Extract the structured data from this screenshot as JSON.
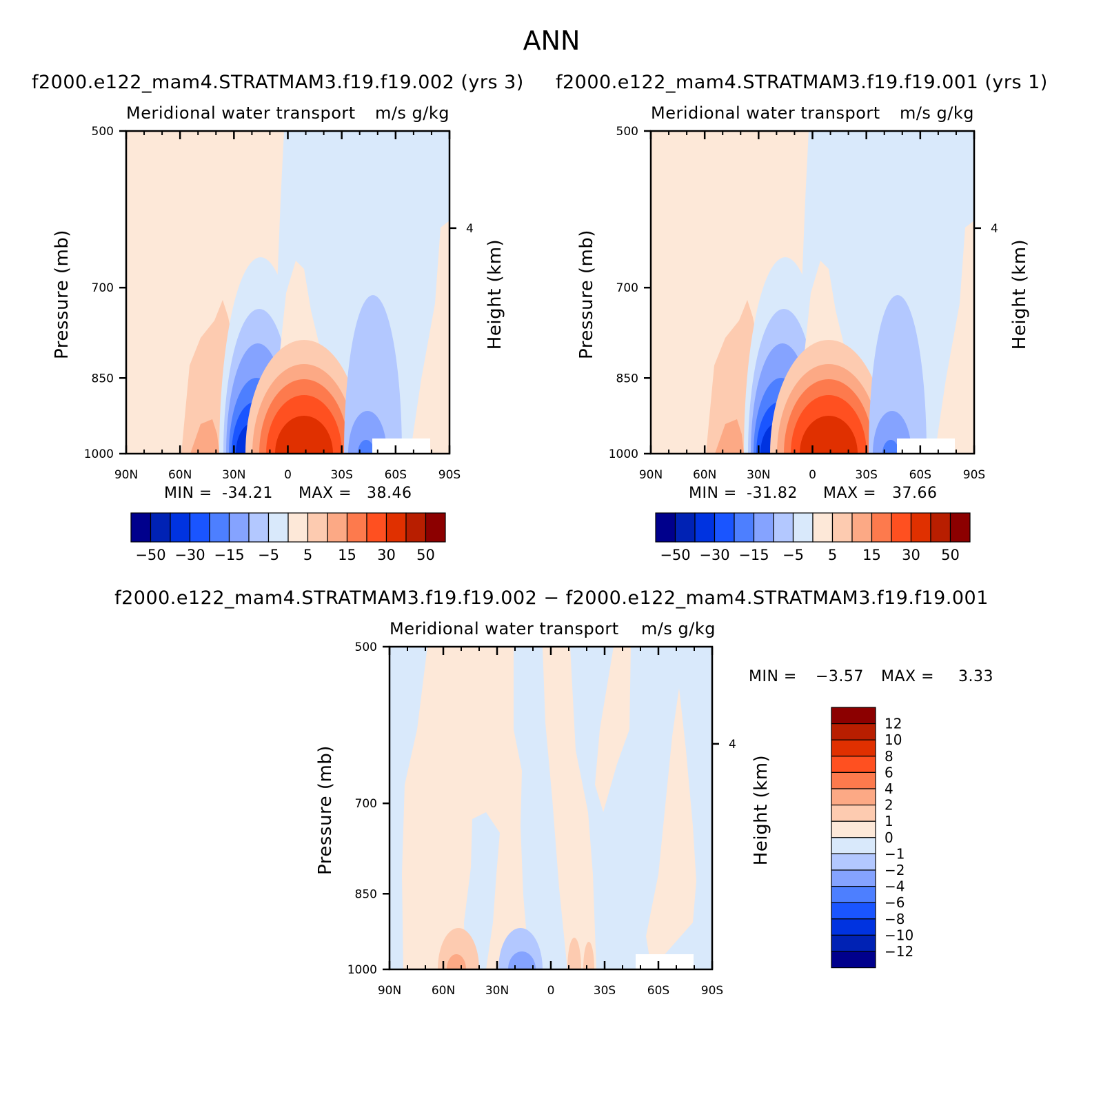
{
  "figure": {
    "title": "ANN"
  },
  "colors": {
    "diverging_palette": [
      "#00008c",
      "#0022b4",
      "#0033e0",
      "#1a55ff",
      "#4d7fff",
      "#85a3ff",
      "#b3c8ff",
      "#d9e9fb",
      "#fde8d8",
      "#fdcbb0",
      "#fca985",
      "#fd7a4d",
      "#ff5020",
      "#e03000",
      "#b81e00",
      "#8c0000"
    ]
  },
  "chart_data": [
    {
      "type": "contour",
      "case_title": "f2000.e122_mam4.STRATMAM3.f19.f19.002 (yrs 3)",
      "left_subtitle": "Meridional water transport",
      "right_subtitle": "m/s g/kg",
      "ylabel": "Pressure (mb)",
      "right_ylabel": "Height (km)",
      "xticks": [
        "90N",
        "60N",
        "30N",
        "0",
        "30S",
        "60S",
        "90S"
      ],
      "yticks": [
        "500",
        "700",
        "850",
        "1000"
      ],
      "right_ticks": [
        "4"
      ],
      "min_label": "MIN =",
      "min_value": "-34.21",
      "max_label": "MAX =",
      "max_value": "38.46",
      "min": -34.21,
      "max": 38.46,
      "colorbar_labels": [
        "−50",
        "−30",
        "−15",
        "−5",
        "5",
        "15",
        "30",
        "50"
      ],
      "colorbar_orientation": "horizontal"
    },
    {
      "type": "contour",
      "case_title": "f2000.e122_mam4.STRATMAM3.f19.f19.001 (yrs 1)",
      "left_subtitle": "Meridional water transport",
      "right_subtitle": "m/s g/kg",
      "ylabel": "Pressure (mb)",
      "right_ylabel": "Height (km)",
      "xticks": [
        "90N",
        "60N",
        "30N",
        "0",
        "30S",
        "60S",
        "90S"
      ],
      "yticks": [
        "500",
        "700",
        "850",
        "1000"
      ],
      "right_ticks": [
        "4"
      ],
      "min_label": "MIN =",
      "min_value": "-31.82",
      "max_label": "MAX =",
      "max_value": "37.66",
      "min": -31.82,
      "max": 37.66,
      "colorbar_labels": [
        "−50",
        "−30",
        "−15",
        "−5",
        "5",
        "15",
        "30",
        "50"
      ],
      "colorbar_orientation": "horizontal"
    },
    {
      "type": "contour",
      "case_title": "f2000.e122_mam4.STRATMAM3.f19.f19.002 − f2000.e122_mam4.STRATMAM3.f19.f19.001",
      "left_subtitle": "Meridional water transport",
      "right_subtitle": "m/s g/kg",
      "ylabel": "Pressure (mb)",
      "right_ylabel": "Height (km)",
      "xticks": [
        "90N",
        "60N",
        "30N",
        "0",
        "30S",
        "60S",
        "90S"
      ],
      "yticks": [
        "500",
        "700",
        "850",
        "1000"
      ],
      "right_ticks": [
        "4"
      ],
      "min_label": "MIN =",
      "min_value": "−3.57",
      "max_label": "MAX =",
      "max_value": "3.33",
      "min": -3.57,
      "max": 3.33,
      "colorbar_labels": [
        "12",
        "10",
        "8",
        "6",
        "4",
        "2",
        "1",
        "0",
        "−1",
        "−2",
        "−4",
        "−6",
        "−8",
        "−10",
        "−12"
      ],
      "colorbar_orientation": "vertical"
    }
  ]
}
